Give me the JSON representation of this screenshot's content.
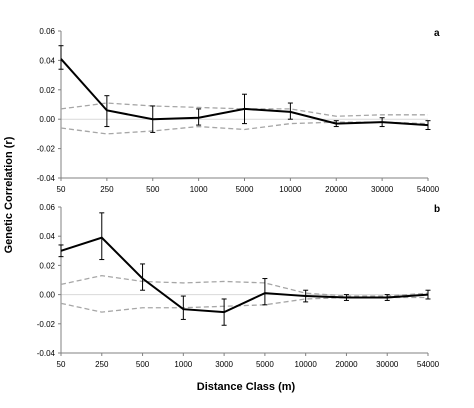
{
  "y_axis_label": "Genetic Correlation (r)",
  "x_axis_label": "Distance Class (m)",
  "colors": {
    "observed": "#000000",
    "envelope": "#a6a6a6",
    "zero_line": "#d9d9d9",
    "axis": "#808080"
  },
  "chart_data": [
    {
      "type": "line",
      "panel_label": "a",
      "x_ticks": [
        "50",
        "250",
        "500",
        "1000",
        "5000",
        "10000",
        "20000",
        "30000",
        "54000"
      ],
      "y_ticks": [
        "0.06",
        "0.04",
        "0.02",
        "0.00",
        "-0.02",
        "-0.04"
      ],
      "ylim": [
        -0.04,
        0.06
      ],
      "grid": false,
      "series": [
        {
          "role": "observed",
          "values": [
            0.041,
            0.006,
            0.0,
            0.001,
            0.007,
            0.005,
            -0.003,
            -0.002,
            -0.004
          ],
          "error_low": [
            0.034,
            -0.005,
            -0.009,
            -0.004,
            -0.003,
            0.0,
            -0.005,
            -0.005,
            -0.007
          ],
          "error_high": [
            0.05,
            0.016,
            0.009,
            0.007,
            0.017,
            0.011,
            -0.001,
            0.001,
            -0.001
          ]
        },
        {
          "role": "upper_envelope",
          "values": [
            0.007,
            0.011,
            0.009,
            0.008,
            0.007,
            0.007,
            0.002,
            0.003,
            0.003
          ]
        },
        {
          "role": "lower_envelope",
          "values": [
            -0.006,
            -0.01,
            -0.008,
            -0.005,
            -0.007,
            -0.003,
            -0.002,
            -0.002,
            -0.003
          ]
        }
      ]
    },
    {
      "type": "line",
      "panel_label": "b",
      "x_ticks": [
        "50",
        "250",
        "500",
        "1000",
        "3000",
        "5000",
        "10000",
        "20000",
        "30000",
        "54000"
      ],
      "y_ticks": [
        "0.06",
        "0.04",
        "0.02",
        "0.00",
        "-0.02",
        "-0.04"
      ],
      "ylim": [
        -0.04,
        0.06
      ],
      "grid": false,
      "series": [
        {
          "role": "observed",
          "values": [
            0.03,
            0.039,
            0.011,
            -0.01,
            -0.012,
            0.001,
            -0.001,
            -0.002,
            -0.002,
            0.0
          ],
          "error_low": [
            0.026,
            0.024,
            0.003,
            -0.017,
            -0.021,
            -0.007,
            -0.005,
            -0.004,
            -0.004,
            -0.003
          ],
          "error_high": [
            0.034,
            0.056,
            0.021,
            -0.001,
            -0.003,
            0.011,
            0.003,
            0.0,
            0.0,
            0.003
          ]
        },
        {
          "role": "upper_envelope",
          "values": [
            0.007,
            0.013,
            0.009,
            0.008,
            0.009,
            0.008,
            0.001,
            -0.001,
            -0.001,
            0.001
          ]
        },
        {
          "role": "lower_envelope",
          "values": [
            -0.006,
            -0.012,
            -0.009,
            -0.009,
            -0.008,
            -0.007,
            -0.003,
            -0.002,
            -0.002,
            -0.002
          ]
        }
      ]
    }
  ]
}
